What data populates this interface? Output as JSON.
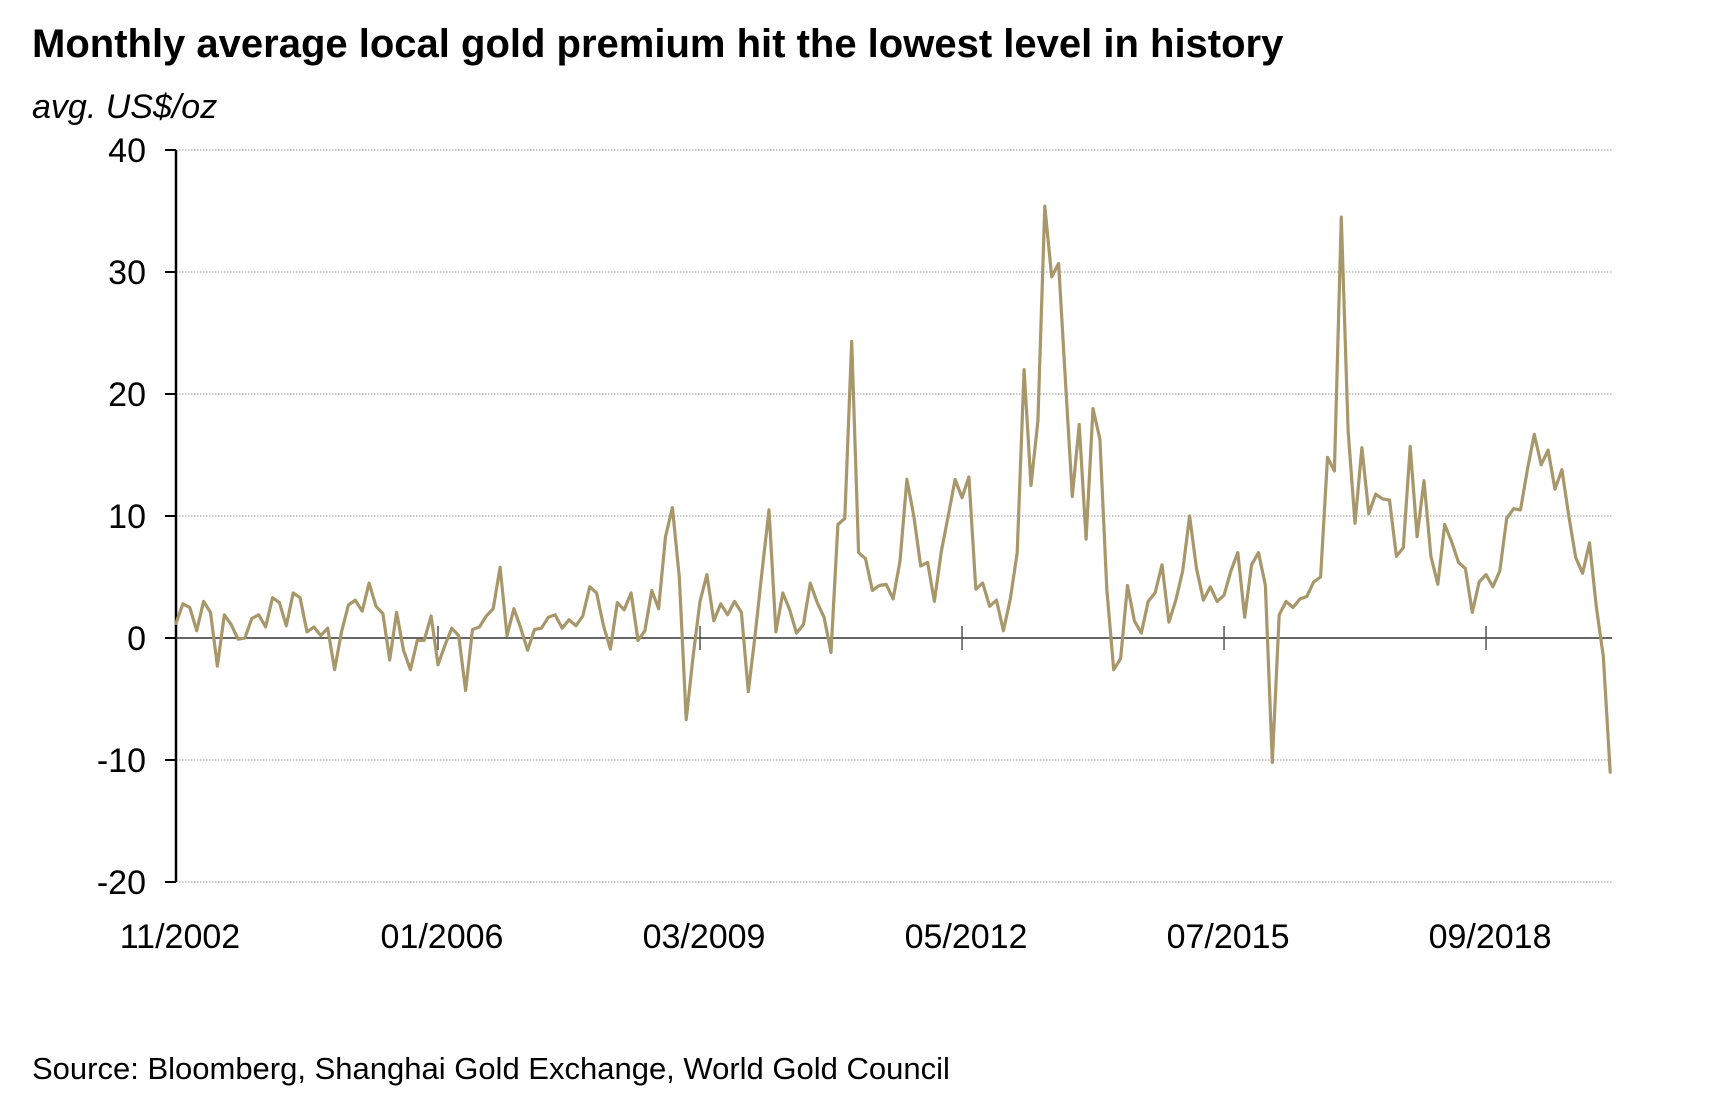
{
  "title": "Monthly average local gold premium hit the lowest level in history",
  "subtitle": "avg. US$/oz",
  "source": "Source: Bloomberg, Shanghai Gold Exchange, World Gold Council",
  "colors": {
    "line": "#A8976A",
    "axis": "#000000",
    "zero_line": "#333333",
    "grid": "#9a9a9a"
  },
  "chart_data": {
    "type": "line",
    "title": "Monthly average local gold premium hit the lowest level in history",
    "ylabel": "avg. US$/oz",
    "xlabel": "",
    "ylim": [
      -20,
      40
    ],
    "yticks": [
      40,
      30,
      20,
      10,
      0,
      -10,
      -20
    ],
    "ytick_labels": [
      "40",
      "30",
      "20",
      "10",
      "0",
      "-10",
      "-20"
    ],
    "x_start": "11/2002",
    "x_frequency": "monthly",
    "xtick_labels": [
      "11/2002",
      "01/2006",
      "03/2009",
      "05/2012",
      "07/2015",
      "09/2018"
    ],
    "xtick_month_index": [
      0,
      38,
      76,
      114,
      152,
      190
    ],
    "grid": "horizontal dotted",
    "legend": "none",
    "series": [
      {
        "name": "Local gold premium",
        "values": [
          1.2,
          2.8,
          2.5,
          0.6,
          3.0,
          2.1,
          -2.3,
          1.9,
          1.1,
          -0.1,
          0.0,
          1.6,
          1.9,
          0.9,
          3.3,
          2.9,
          1.0,
          3.7,
          3.3,
          0.5,
          0.9,
          0.2,
          0.8,
          -2.6,
          0.5,
          2.7,
          3.1,
          2.2,
          4.5,
          2.6,
          2.0,
          -1.8,
          2.1,
          -1.0,
          -2.6,
          -0.2,
          -0.2,
          1.8,
          -2.2,
          -0.6,
          0.8,
          0.2,
          -4.3,
          0.7,
          0.9,
          1.8,
          2.4,
          5.8,
          0.2,
          2.4,
          0.8,
          -1.0,
          0.7,
          0.8,
          1.7,
          1.9,
          0.8,
          1.5,
          1.0,
          1.8,
          4.2,
          3.7,
          1.0,
          -0.9,
          2.9,
          2.3,
          3.7,
          -0.2,
          0.6,
          3.9,
          2.4,
          8.3,
          10.7,
          5.0,
          -6.7,
          -1.5,
          3.0,
          5.2,
          1.4,
          2.8,
          1.9,
          3.0,
          2.1,
          -4.4,
          0.3,
          5.5,
          10.5,
          0.5,
          3.7,
          2.3,
          0.4,
          1.1,
          4.5,
          2.9,
          1.7,
          -1.2,
          9.3,
          9.8,
          24.3,
          7.0,
          6.5,
          3.9,
          4.3,
          4.4,
          3.2,
          6.3,
          13.0,
          10.0,
          5.9,
          6.2,
          3.0,
          7.1,
          10.0,
          13.0,
          11.5,
          13.2,
          4.0,
          4.5,
          2.6,
          3.1,
          0.6,
          3.2,
          7.0,
          22.0,
          12.5,
          17.8,
          35.4,
          29.6,
          30.7,
          21.0,
          11.6,
          17.5,
          8.1,
          18.8,
          16.3,
          4.0,
          -2.6,
          -1.7,
          4.3,
          1.4,
          0.4,
          3.0,
          3.7,
          6.0,
          1.3,
          3.1,
          5.5,
          10.0,
          5.7,
          3.1,
          4.2,
          3.0,
          3.5,
          5.5,
          7.0,
          1.7,
          6.0,
          7.0,
          4.3,
          -10.2,
          1.9,
          3.0,
          2.5,
          3.2,
          3.4,
          4.6,
          5.0,
          14.8,
          13.7,
          34.5,
          17.0,
          9.4,
          15.6,
          10.2,
          11.8,
          11.4,
          11.3,
          6.7,
          7.4,
          15.7,
          8.3,
          12.9,
          6.7,
          4.4,
          9.3,
          7.9,
          6.2,
          5.7,
          2.1,
          4.6,
          5.2,
          4.2,
          5.5,
          9.8,
          10.6,
          10.5,
          13.8,
          16.7,
          14.2,
          15.4,
          12.2,
          13.8,
          10.0,
          6.6,
          5.3,
          7.8,
          2.5,
          -1.5,
          -11.0
        ]
      }
    ]
  }
}
